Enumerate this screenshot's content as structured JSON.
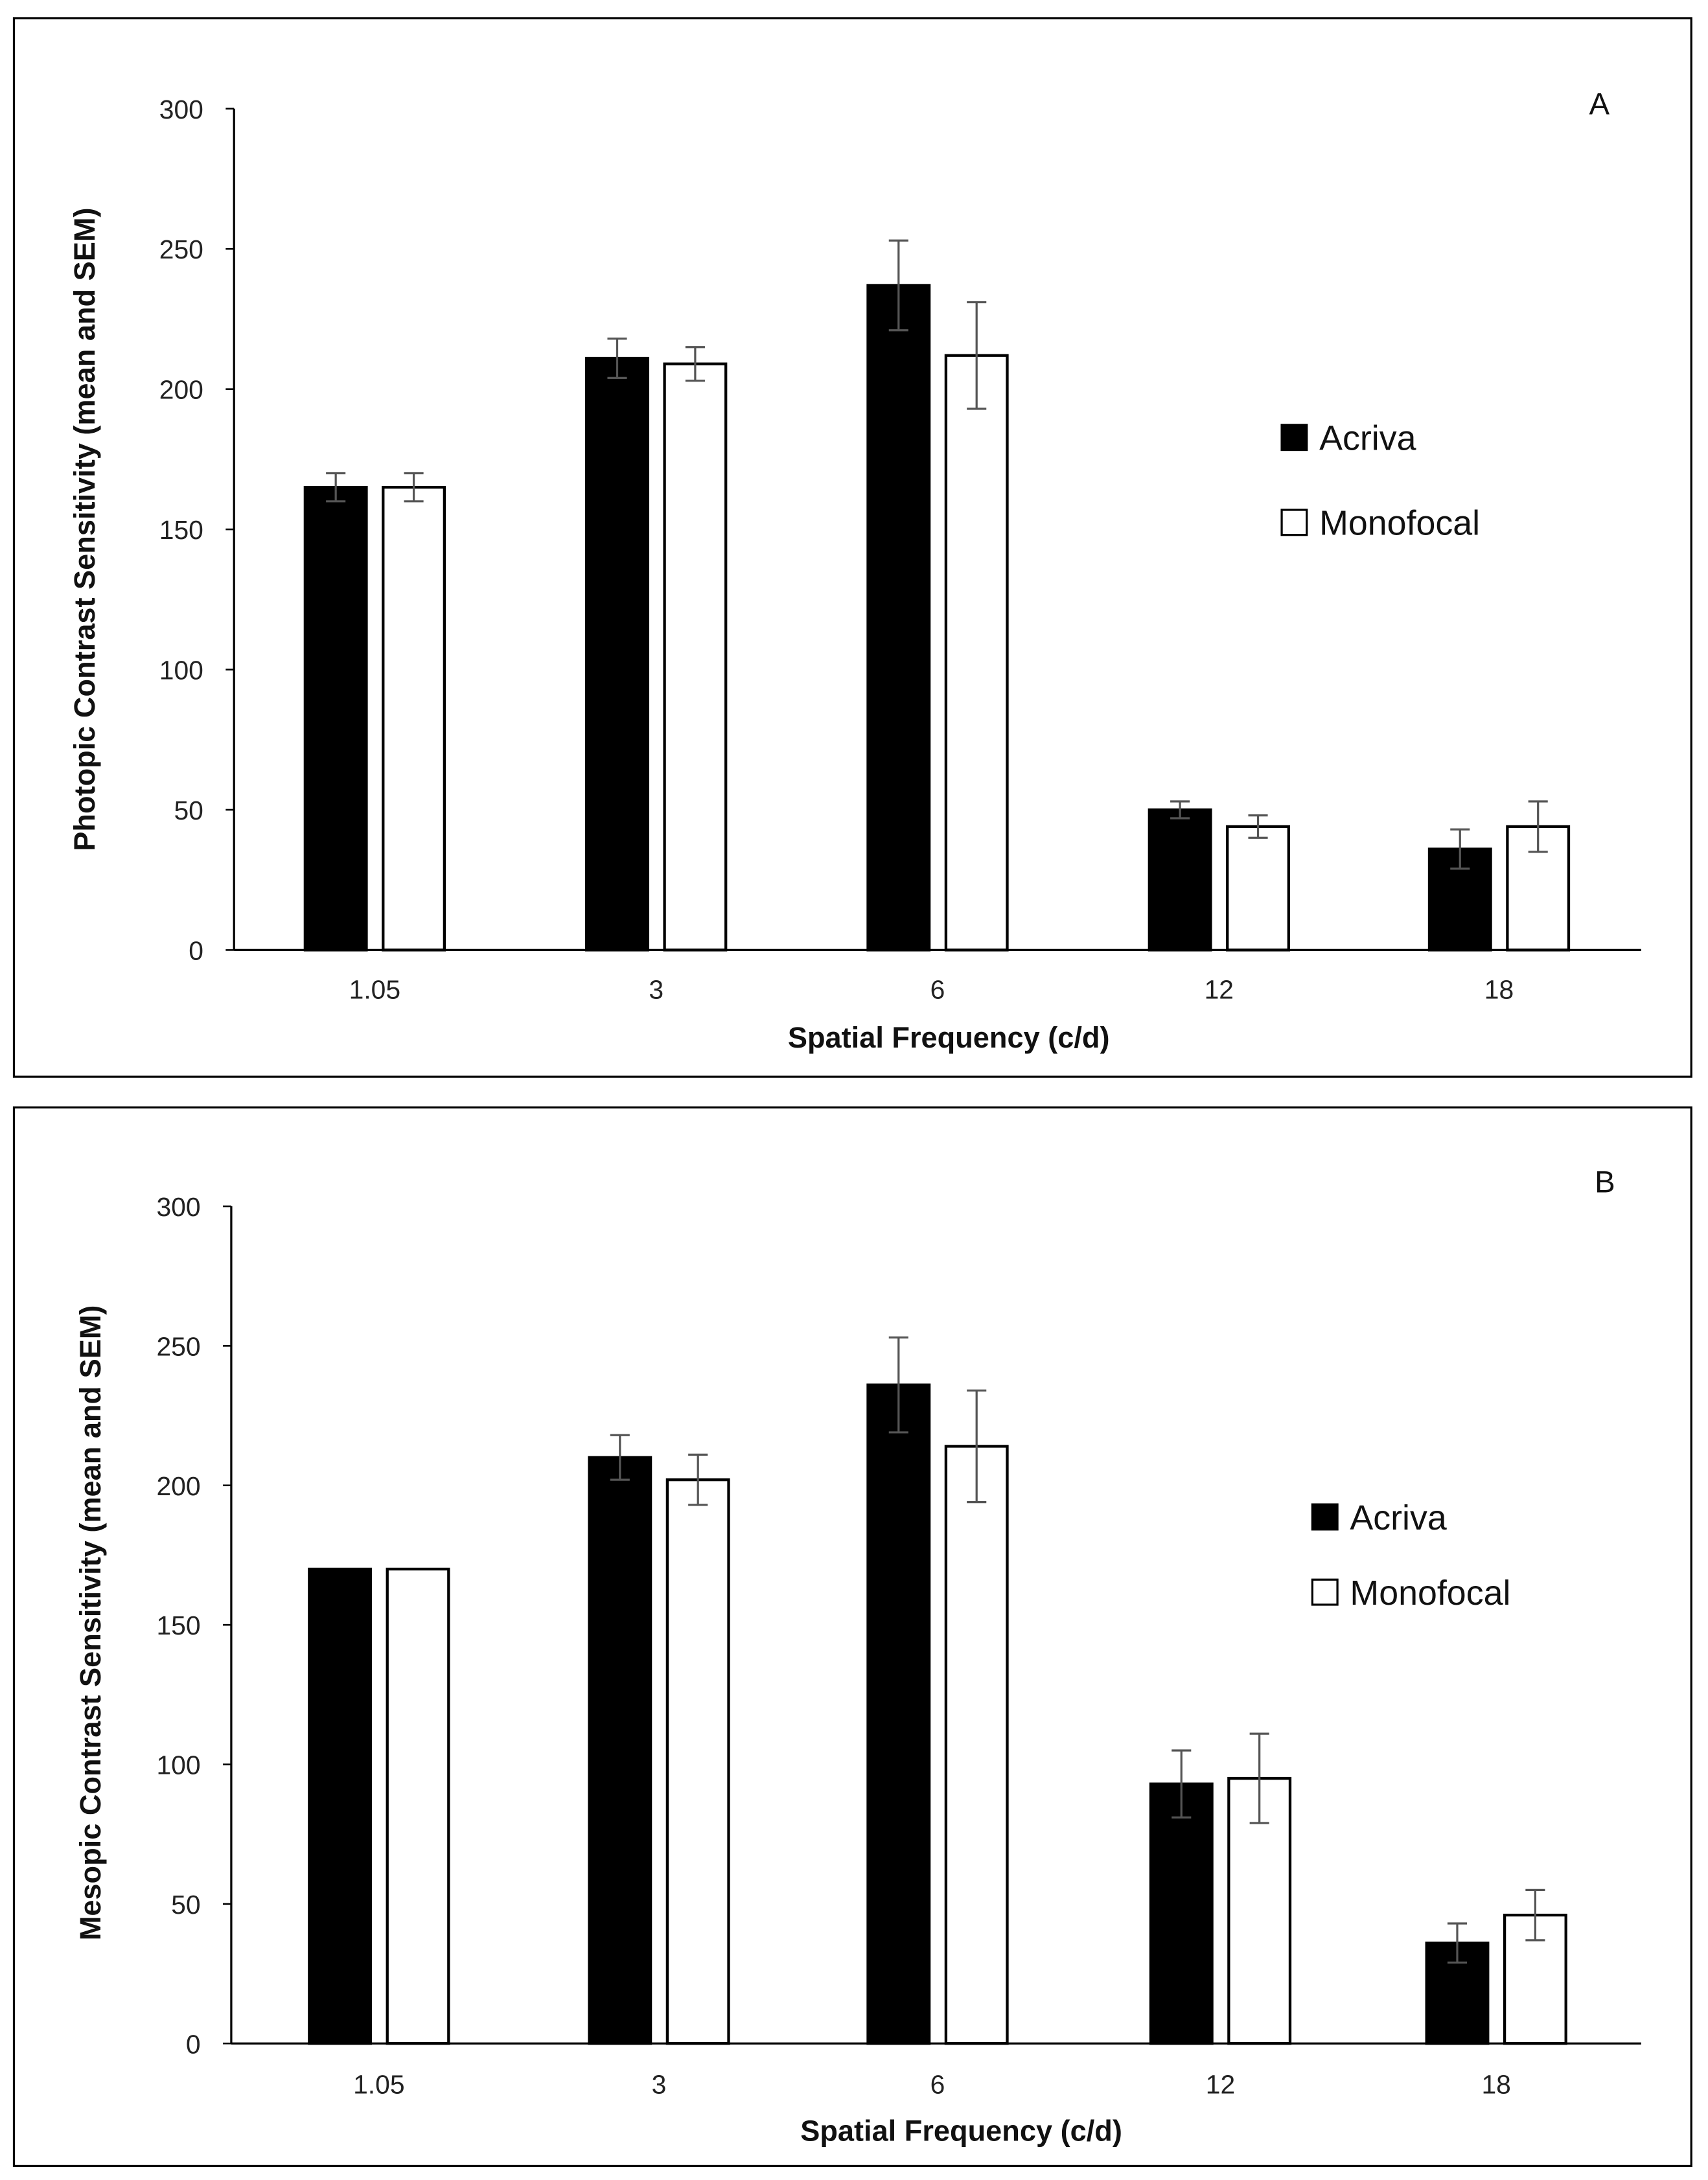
{
  "chart_data": [
    {
      "type": "bar",
      "panel_label": "A",
      "title": "",
      "xlabel": "Spatial Frequency (c/d)",
      "ylabel": "Photopic Contrast Sensitivity (mean and SEM)",
      "categories": [
        "1.05",
        "3",
        "6",
        "12",
        "18"
      ],
      "ylim": [
        0,
        300
      ],
      "yticks": [
        "0",
        "50",
        "100",
        "150",
        "200",
        "250",
        "300"
      ],
      "grid": false,
      "legend_position": "right",
      "series": [
        {
          "name": "Acriva",
          "color": "#000000",
          "values": [
            165,
            211,
            237,
            50,
            36
          ],
          "sem": [
            5,
            7,
            16,
            3,
            7
          ]
        },
        {
          "name": "Monofocal",
          "color": "#ffffff",
          "values": [
            165,
            209,
            212,
            44,
            44
          ],
          "sem": [
            5,
            6,
            19,
            4,
            9
          ]
        }
      ]
    },
    {
      "type": "bar",
      "panel_label": "B",
      "title": "",
      "xlabel": "Spatial Frequency (c/d)",
      "ylabel": "Mesopic Contrast Sensitivity (mean and SEM)",
      "categories": [
        "1.05",
        "3",
        "6",
        "12",
        "18"
      ],
      "ylim": [
        0,
        300
      ],
      "yticks": [
        "0",
        "50",
        "100",
        "150",
        "200",
        "250",
        "300"
      ],
      "grid": false,
      "legend_position": "right",
      "series": [
        {
          "name": "Acriva",
          "color": "#000000",
          "values": [
            170,
            210,
            236,
            93,
            36
          ],
          "sem": [
            0,
            8,
            17,
            12,
            7
          ]
        },
        {
          "name": "Monofocal",
          "color": "#ffffff",
          "values": [
            170,
            202,
            214,
            95,
            46
          ],
          "sem": [
            0,
            9,
            20,
            16,
            9
          ]
        }
      ]
    }
  ]
}
